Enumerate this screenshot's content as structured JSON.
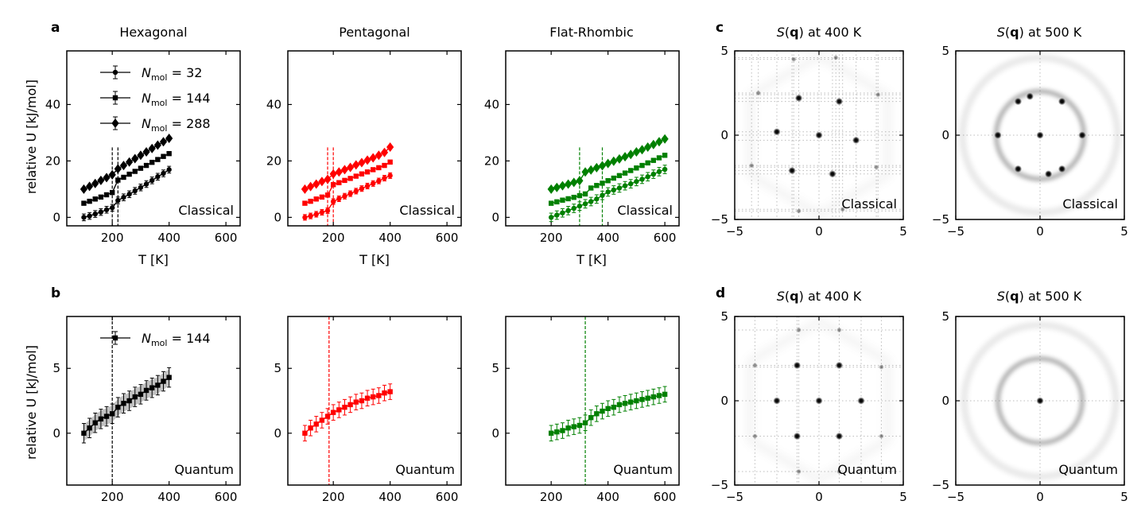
{
  "figure": {
    "panel_letters": {
      "a": "a",
      "b": "b",
      "c": "c",
      "d": "d"
    },
    "ylabel": "relative U [kJ/mol]",
    "xlabel": "T [K]",
    "sq_title_400": "S(q) at 400 K",
    "sq_title_500": "S(q) at 500 K",
    "colors": {
      "Hexagonal": "#000000",
      "Pentagonal": "#ff0000",
      "Flat-Rhombic": "#008000",
      "band": "#bbbbbb"
    }
  },
  "chart_data": [
    {
      "id": "a-hex",
      "type": "line",
      "title": "Hexagonal",
      "xlabel": "T [K]",
      "ylabel": "relative U [kJ/mol]",
      "annotation": "Classical",
      "xlim": [
        40,
        650
      ],
      "ylim": [
        -3,
        59
      ],
      "xticks": [
        200,
        400,
        600
      ],
      "yticks": [
        0,
        20,
        40
      ],
      "legend": "top-left",
      "color": "#000000",
      "series": [
        {
          "name": "N_mol = 32",
          "marker": "circle",
          "x": [
            100,
            120,
            140,
            160,
            180,
            200,
            220,
            240,
            260,
            280,
            300,
            320,
            340,
            360,
            380,
            400
          ],
          "y": [
            0.0,
            0.5,
            1.2,
            1.9,
            2.7,
            3.4,
            6.0,
            7.1,
            8.2,
            9.4,
            10.6,
            11.8,
            13.1,
            14.4,
            15.6,
            16.9
          ],
          "err": 1.2
        },
        {
          "name": "N_mol = 144",
          "marker": "square",
          "x": [
            100,
            120,
            140,
            160,
            180,
            200,
            220,
            240,
            260,
            280,
            300,
            320,
            340,
            360,
            380,
            400
          ],
          "y": [
            5.0,
            5.7,
            6.5,
            7.2,
            8.0,
            8.8,
            13.2,
            14.2,
            15.3,
            16.3,
            17.4,
            18.4,
            19.5,
            20.5,
            21.6,
            22.6
          ],
          "err": 0.6
        },
        {
          "name": "N_mol = 288",
          "marker": "diamond",
          "x": [
            100,
            120,
            140,
            160,
            180,
            200,
            220,
            240,
            260,
            280,
            300,
            320,
            340,
            360,
            380,
            400
          ],
          "y": [
            10.0,
            11.0,
            12.0,
            13.1,
            14.1,
            15.1,
            17.2,
            18.4,
            19.6,
            20.8,
            22.0,
            23.2,
            24.4,
            25.6,
            26.8,
            28.0
          ],
          "err": 0.5
        }
      ],
      "vlines": [
        200,
        220
      ]
    },
    {
      "id": "a-pent",
      "type": "line",
      "title": "Pentagonal",
      "annotation": "Classical",
      "xlabel": "T [K]",
      "xlim": [
        40,
        650
      ],
      "ylim": [
        -3,
        59
      ],
      "xticks": [
        200,
        400,
        600
      ],
      "yticks": [
        0,
        20,
        40
      ],
      "color": "#ff0000",
      "series": [
        {
          "marker": "circle",
          "x": [
            100,
            120,
            140,
            160,
            180,
            200,
            220,
            240,
            260,
            280,
            300,
            320,
            340,
            360,
            380,
            400
          ],
          "y": [
            0.0,
            0.5,
            1.1,
            1.8,
            2.4,
            5.6,
            6.6,
            7.5,
            8.4,
            9.3,
            10.2,
            11.1,
            12.0,
            12.9,
            13.9,
            14.8
          ],
          "err": 1.0
        },
        {
          "marker": "square",
          "x": [
            100,
            120,
            140,
            160,
            180,
            200,
            220,
            240,
            260,
            280,
            300,
            320,
            340,
            360,
            380,
            400
          ],
          "y": [
            5.0,
            5.7,
            6.5,
            7.2,
            7.9,
            11.6,
            12.3,
            13.1,
            13.8,
            14.6,
            15.4,
            16.1,
            16.9,
            17.6,
            18.4,
            19.6
          ],
          "err": 0.5
        },
        {
          "marker": "diamond",
          "x": [
            100,
            120,
            140,
            160,
            180,
            200,
            220,
            240,
            260,
            280,
            300,
            320,
            340,
            360,
            380,
            400
          ],
          "y": [
            10.0,
            10.9,
            11.8,
            12.7,
            13.5,
            15.4,
            16.1,
            16.9,
            17.7,
            18.6,
            19.4,
            20.3,
            21.1,
            22.0,
            23.0,
            24.9
          ],
          "err": 0.4
        }
      ],
      "vlines": [
        180,
        200
      ]
    },
    {
      "id": "a-rhomb",
      "type": "line",
      "title": "Flat-Rhombic",
      "annotation": "Classical",
      "xlabel": "T [K]",
      "xlim": [
        40,
        650
      ],
      "ylim": [
        -3,
        59
      ],
      "xticks": [
        200,
        400,
        600
      ],
      "yticks": [
        0,
        20,
        40
      ],
      "color": "#008000",
      "series": [
        {
          "marker": "circle",
          "x": [
            200,
            220,
            240,
            260,
            280,
            300,
            320,
            340,
            360,
            380,
            400,
            420,
            440,
            460,
            480,
            500,
            520,
            540,
            560,
            580,
            600
          ],
          "y": [
            0.0,
            0.8,
            1.6,
            2.4,
            3.2,
            4.0,
            4.8,
            5.6,
            6.5,
            7.8,
            9.0,
            9.7,
            10.4,
            11.2,
            11.9,
            12.7,
            13.5,
            14.4,
            15.3,
            16.2,
            17.0
          ],
          "err": 1.5
        },
        {
          "marker": "square",
          "x": [
            200,
            220,
            240,
            260,
            280,
            300,
            320,
            340,
            360,
            380,
            400,
            420,
            440,
            460,
            480,
            500,
            520,
            540,
            560,
            580,
            600
          ],
          "y": [
            5.0,
            5.5,
            6.1,
            6.6,
            7.1,
            7.7,
            8.3,
            10.4,
            11.3,
            12.1,
            13.0,
            13.9,
            14.8,
            15.7,
            16.6,
            17.5,
            18.4,
            19.3,
            20.2,
            21.1,
            22.0
          ],
          "err": 0.7
        },
        {
          "marker": "diamond",
          "x": [
            200,
            220,
            240,
            260,
            280,
            300,
            320,
            340,
            360,
            380,
            400,
            420,
            440,
            460,
            480,
            500,
            520,
            540,
            560,
            580,
            600
          ],
          "y": [
            10.0,
            10.6,
            11.2,
            11.8,
            12.4,
            13.0,
            16.1,
            16.8,
            17.6,
            18.3,
            19.1,
            19.9,
            20.7,
            21.5,
            22.3,
            23.2,
            24.0,
            24.9,
            25.8,
            26.8,
            27.8
          ],
          "err": 0.5
        }
      ],
      "vlines": [
        300,
        380
      ]
    },
    {
      "id": "b-hex",
      "type": "line",
      "annotation": "Quantum",
      "ylabel": "relative U [kJ/mol]",
      "xlim": [
        40,
        650
      ],
      "ylim": [
        -4,
        9
      ],
      "xticks": [
        200,
        400,
        600
      ],
      "yticks": [
        0,
        5
      ],
      "color": "#000000",
      "legend": "top-left",
      "series": [
        {
          "name": "N_mol = 144",
          "marker": "square",
          "x": [
            100,
            120,
            140,
            160,
            180,
            200,
            220,
            240,
            260,
            280,
            300,
            320,
            340,
            360,
            380,
            400
          ],
          "y": [
            0.0,
            0.4,
            0.8,
            1.1,
            1.3,
            1.5,
            2.0,
            2.3,
            2.5,
            2.8,
            3.0,
            3.3,
            3.5,
            3.7,
            4.0,
            4.3
          ],
          "err": 0.75
        }
      ],
      "vlines": [
        200
      ],
      "band": true
    },
    {
      "id": "b-pent",
      "type": "line",
      "annotation": "Quantum",
      "xlim": [
        40,
        650
      ],
      "ylim": [
        -4,
        9
      ],
      "xticks": [
        200,
        400,
        600
      ],
      "yticks": [
        0,
        5
      ],
      "color": "#ff0000",
      "series": [
        {
          "marker": "square",
          "x": [
            100,
            120,
            140,
            160,
            180,
            200,
            220,
            240,
            260,
            280,
            300,
            320,
            340,
            360,
            380,
            400
          ],
          "y": [
            0.0,
            0.4,
            0.7,
            1.0,
            1.3,
            1.6,
            1.8,
            2.0,
            2.2,
            2.4,
            2.5,
            2.7,
            2.8,
            2.9,
            3.1,
            3.2
          ],
          "err": 0.6
        }
      ],
      "vlines": [
        185
      ]
    },
    {
      "id": "b-rhomb",
      "type": "line",
      "annotation": "Quantum",
      "xlim": [
        40,
        650
      ],
      "ylim": [
        -4,
        9
      ],
      "xticks": [
        200,
        400,
        600
      ],
      "yticks": [
        0,
        5
      ],
      "color": "#008000",
      "series": [
        {
          "marker": "square",
          "x": [
            200,
            220,
            240,
            260,
            280,
            300,
            320,
            340,
            360,
            380,
            400,
            420,
            440,
            460,
            480,
            500,
            520,
            540,
            560,
            580,
            600
          ],
          "y": [
            0.0,
            0.1,
            0.2,
            0.4,
            0.5,
            0.6,
            0.8,
            1.2,
            1.5,
            1.7,
            1.9,
            2.0,
            2.2,
            2.3,
            2.4,
            2.5,
            2.6,
            2.7,
            2.8,
            2.9,
            3.0
          ],
          "err": 0.6
        }
      ],
      "vlines": [
        320
      ]
    },
    {
      "id": "c-400",
      "type": "heatmap",
      "title": "S(q) at 400 K",
      "annotation": "Classical",
      "xlim": [
        -5,
        5
      ],
      "ylim": [
        -5,
        5
      ],
      "xticks": [
        -5,
        0,
        5
      ],
      "yticks": [
        -5,
        0,
        5
      ],
      "peaks": [
        [
          0,
          0
        ],
        [
          -1.2,
          2.2
        ],
        [
          1.2,
          2.0
        ],
        [
          -2.5,
          0.2
        ],
        [
          2.2,
          -0.3
        ],
        [
          -1.6,
          -2.1
        ],
        [
          0.8,
          -2.3
        ],
        [
          -3.6,
          2.5
        ],
        [
          3.5,
          2.4
        ],
        [
          -4.0,
          -1.8
        ],
        [
          3.4,
          -1.9
        ],
        [
          -1.5,
          4.5
        ],
        [
          1.0,
          4.6
        ],
        [
          -1.2,
          -4.5
        ],
        [
          1.4,
          -4.4
        ]
      ],
      "rings": [],
      "lines": true
    },
    {
      "id": "c-500",
      "type": "heatmap",
      "title": "S(q) at 500 K",
      "annotation": "Classical",
      "xlim": [
        -5,
        5
      ],
      "ylim": [
        -5,
        5
      ],
      "xticks": [
        -5,
        0,
        5
      ],
      "yticks": [
        -5,
        0,
        5
      ],
      "peaks": [
        [
          0,
          0
        ],
        [
          -2.5,
          0
        ],
        [
          2.5,
          0
        ],
        [
          -1.3,
          2.0
        ],
        [
          1.3,
          2.0
        ],
        [
          -1.3,
          -2.0
        ],
        [
          1.3,
          -2.0
        ],
        [
          -0.6,
          2.3
        ],
        [
          0.5,
          -2.3
        ]
      ],
      "rings": [
        2.6,
        4.6
      ],
      "lines": true
    },
    {
      "id": "d-400",
      "type": "heatmap",
      "title": "S(q) at 400 K",
      "annotation": "Quantum",
      "xlim": [
        -5,
        5
      ],
      "ylim": [
        -5,
        5
      ],
      "xticks": [
        -5,
        0,
        5
      ],
      "yticks": [
        -5,
        0,
        5
      ],
      "peaks": [
        [
          0,
          0
        ],
        [
          -2.5,
          0
        ],
        [
          2.5,
          0
        ],
        [
          -1.3,
          2.1
        ],
        [
          1.2,
          2.1
        ],
        [
          -1.3,
          -2.1
        ],
        [
          1.2,
          -2.1
        ],
        [
          -3.8,
          2.1
        ],
        [
          3.7,
          2.0
        ],
        [
          -3.8,
          -2.1
        ],
        [
          3.7,
          -2.1
        ],
        [
          -1.2,
          4.2
        ],
        [
          1.2,
          4.2
        ],
        [
          -1.2,
          -4.2
        ],
        [
          1.2,
          -4.2
        ]
      ],
      "rings": [],
      "lines": true
    },
    {
      "id": "d-500",
      "type": "heatmap",
      "title": "S(q) at 500 K",
      "annotation": "Quantum",
      "xlim": [
        -5,
        5
      ],
      "ylim": [
        -5,
        5
      ],
      "xticks": [
        -5,
        0,
        5
      ],
      "yticks": [
        -5,
        0,
        5
      ],
      "peaks": [
        [
          0,
          0
        ]
      ],
      "rings": [
        2.5,
        4.5
      ],
      "lines": true
    }
  ]
}
